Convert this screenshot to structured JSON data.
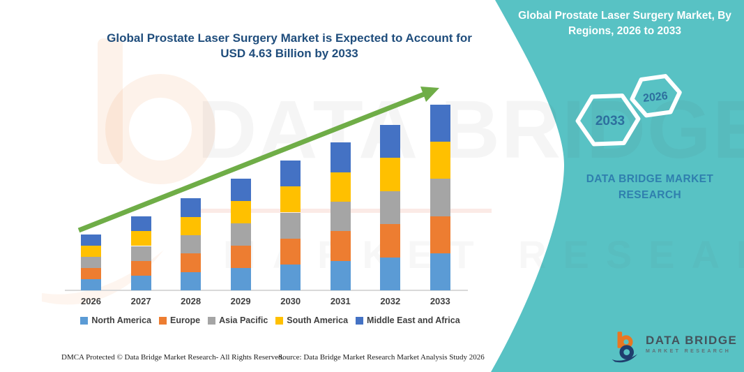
{
  "main_title": {
    "line1": "Global Prostate Laser Surgery Market is Expected to Account for",
    "line2": "USD 4.63 Billion by 2033"
  },
  "right_panel": {
    "title": "Global Prostate Laser Surgery Market, By Regions, 2026 to 2033",
    "hexagon_large": "2033",
    "hexagon_small": "2026",
    "brand_text": "DATA BRIDGE MARKET RESEARCH"
  },
  "logo": {
    "name": "DATA BRIDGE",
    "sub": "MARKET RESEARCH"
  },
  "watermark": {
    "line1": "DATA BRIDGE",
    "line2": "MARKET RESEARCH"
  },
  "footer": {
    "dmca": "DMCA Protected © Data Bridge Market Research-  All Rights Reserved.",
    "source": "Source: Data Bridge Market Research  Market Analysis Study 2026"
  },
  "colors": {
    "teal_panel": "#58C2C4",
    "title_navy": "#1F4D7C",
    "brand_blue": "#2F7FAE",
    "hex_text_blue": "#2D6F9E",
    "arrow_green": "#6FAD47",
    "axis_gray": "#D9D9D9",
    "logo_orange": "#E87722",
    "logo_navy": "#1F3E6E"
  },
  "chart_data": {
    "type": "bar",
    "stacked": true,
    "title": "Global Prostate Laser Surgery Market is Expected to Account for USD 4.63 Billion by 2033",
    "unit": "USD Billion",
    "xlabel": "",
    "ylabel": "",
    "grid": false,
    "legend_position": "bottom",
    "ylim": [
      0,
      5
    ],
    "categories": [
      "2026",
      "2027",
      "2028",
      "2029",
      "2030",
      "2031",
      "2032",
      "2033"
    ],
    "series": [
      {
        "name": "North America",
        "color": "#5B9BD5",
        "values": [
          0.28,
          0.37,
          0.46,
          0.56,
          0.65,
          0.74,
          0.83,
          0.93
        ]
      },
      {
        "name": "Europe",
        "color": "#ED7D31",
        "values": [
          0.28,
          0.37,
          0.46,
          0.56,
          0.65,
          0.74,
          0.83,
          0.93
        ]
      },
      {
        "name": "Asia Pacific",
        "color": "#A5A5A5",
        "values": [
          0.28,
          0.37,
          0.46,
          0.56,
          0.65,
          0.74,
          0.83,
          0.93
        ]
      },
      {
        "name": "South America",
        "color": "#FFC000",
        "values": [
          0.28,
          0.37,
          0.46,
          0.56,
          0.65,
          0.74,
          0.83,
          0.93
        ]
      },
      {
        "name": "Middle East and Africa",
        "color": "#4472C4",
        "values": [
          0.28,
          0.37,
          0.46,
          0.56,
          0.65,
          0.74,
          0.83,
          0.93
        ]
      }
    ],
    "totals_usd_billion": [
      1.39,
      1.85,
      2.31,
      2.78,
      3.24,
      3.7,
      4.17,
      4.63
    ],
    "trend_arrow": true
  }
}
